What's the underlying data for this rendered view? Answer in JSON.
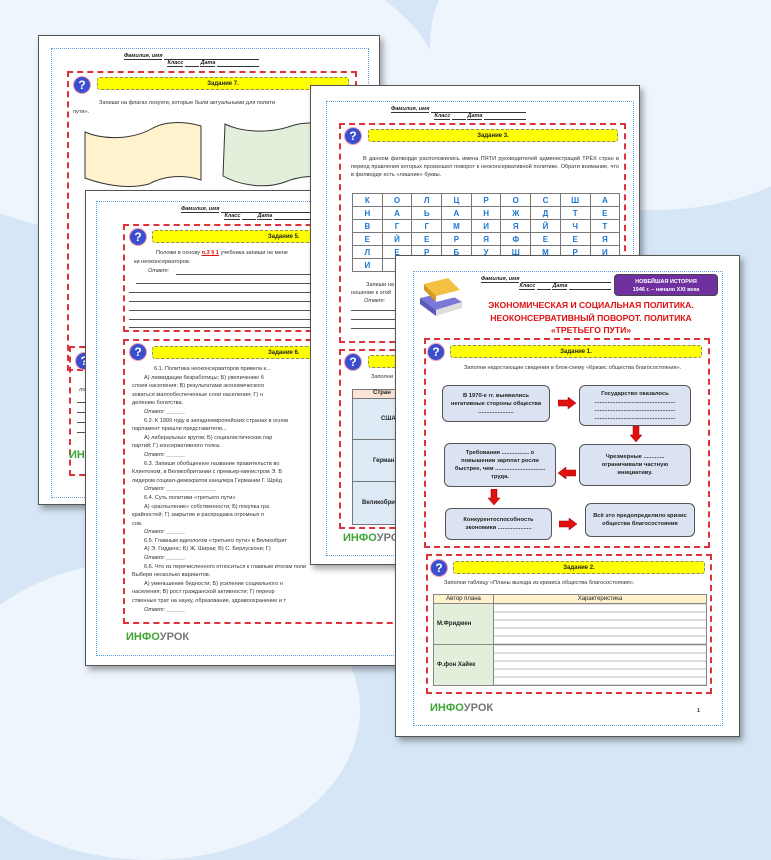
{
  "common": {
    "name_label": "Фамилия, имя",
    "class_label": "Класс",
    "date_label": "Дата",
    "logo_a": "ИНФО",
    "logo_b": "УРОК",
    "answer_label": "Ответ:"
  },
  "page_a": {
    "task_title": "Задание 7.",
    "instruction": "Запиши на флагах лозунги, которые были актуальными для полити",
    "instruction_cont": "пути».",
    "task8_text": "лозу",
    "flag_colors": [
      "#fff2cc",
      "#e2efda"
    ]
  },
  "page_b": {
    "task5_title": "Задание 5.",
    "task5_text_a": "Положи в основу ",
    "task5_link": "п.3 § 1",
    "task5_text_b": " учебника запиши не мене",
    "task5_text_c": "ки неоконсерваторов.",
    "task6_title": "Задание 6.",
    "task6_lines": [
      "6.1. Политика неоконсерваторов привела к...",
      "А) ликвидации безработицы; Б) увеличению б",
      "слоев населения; В) результатами экономического",
      "зоваться малообеспеченные слои населения; Г) н",
      "делению богатства.",
      "6.2. К 1999 году в западноевропейских странах в основ",
      "парламент пришли представители...",
      "А) либеральных кругов; Б) социалистических пар",
      "партий; Г) консервативного толка.",
      "6.3. Запиши обобщенное название правительств во",
      "Клинтоном, в Великобритании с премьер-министром Э. Б",
      "лидером социал-демократов канцлера Германии Г. Шрёд",
      "6.4. Суть политики «третьего пути»",
      "А) «распыление» собственности; Б) покупка гра",
      "крайностей; Г) закрытие и распродажа огромных п",
      "сов.",
      "6.5. Главным идеологом «третьего пути» в Великобрит",
      "А) Э. Гидденс; Б) Ж. Ширак; В) С. Берлускони; Г)",
      "6.6. Что из перечисленного относиться к главным итогам поли",
      "Выбери несколько вариантов.",
      "А) уменьшение бедности; Б) усиление социального н",
      "населения; В) рост гражданской активности; Г) переор",
      "ственных трат на науку, образование, здравоохранение и т"
    ],
    "page_number": "3"
  },
  "page_c": {
    "task3_title": "Задание 3.",
    "task3_text": "В данном филворде расположились имена ПЯТИ руководителей администраций ТРЁХ стран в период правления которых произошел поворот к неоконсервативной политике. Обрати внимание, что в филворде есть «лишние» буквы.",
    "grid": [
      [
        "К",
        "О",
        "Л",
        "Ц",
        "Р",
        "О",
        "С",
        "Ш",
        "А"
      ],
      [
        "Н",
        "А",
        "Ь",
        "А",
        "Н",
        "Ж",
        "Д",
        "Т",
        "Е"
      ],
      [
        "В",
        "Г",
        "Г",
        "М",
        "И",
        "Я",
        "Й",
        "Ч",
        "Т"
      ],
      [
        "Е",
        "Й",
        "Е",
        "Р",
        "Я",
        "Ф",
        "Е",
        "Е",
        "Я"
      ],
      [
        "Л",
        "Е",
        "Р",
        "Б",
        "У",
        "Ш",
        "М",
        "Р",
        "И"
      ],
      [
        "И",
        "К"
      ]
    ],
    "task3b_text_a": "Запиши на",
    "task3b_text_b": "ношение к этой",
    "task4_text": "Заполни",
    "table_header": "Стран",
    "countries": [
      "США",
      "Герман",
      "Великобри"
    ]
  },
  "page_d": {
    "badge_line1": "НОВЕЙШАЯ ИСТОРИЯ",
    "badge_line2": "1946 г. – начало XXI века",
    "title_lines": [
      "ЭКОНОМИЧЕСКАЯ И СОЦИАЛЬНАЯ ПОЛИТИКА.",
      "НЕОКОНСЕРВАТИВНЫЙ ПОВОРОТ. ПОЛИТИКА",
      "«ТРЕТЬЕГО ПУТИ»"
    ],
    "task1_title": "Задание 1.",
    "task1_text": "Заполни недостающие сведения в блок-схему «Кризис общества благосостояния».",
    "flow": [
      "В 1970-е гг. выявились негативные стороны общества ......................",
      "Государство оказалось .................................................. .................................................. ..................................................",
      "Требования ................. о повышении зарплат росли быстрее, чем ............................... труда.",
      "Чрезмерные ............. ограничивали частную инициативу.",
      "Конкурентоспособность экономики .....................",
      "Всё это предопределило кризис общества благосостояния"
    ],
    "task2_title": "Задание 2.",
    "task2_text": "Заполни таблицу «Планы выхода из кризиса общества благосостояния».",
    "table_headers": [
      "Автор плана",
      "Характеристика"
    ],
    "table_rows": [
      "М.Фридмен",
      "Ф.фон Хайек"
    ],
    "page_number": "1",
    "accent_red": "#e01010",
    "badge_color": "#7030a0"
  }
}
